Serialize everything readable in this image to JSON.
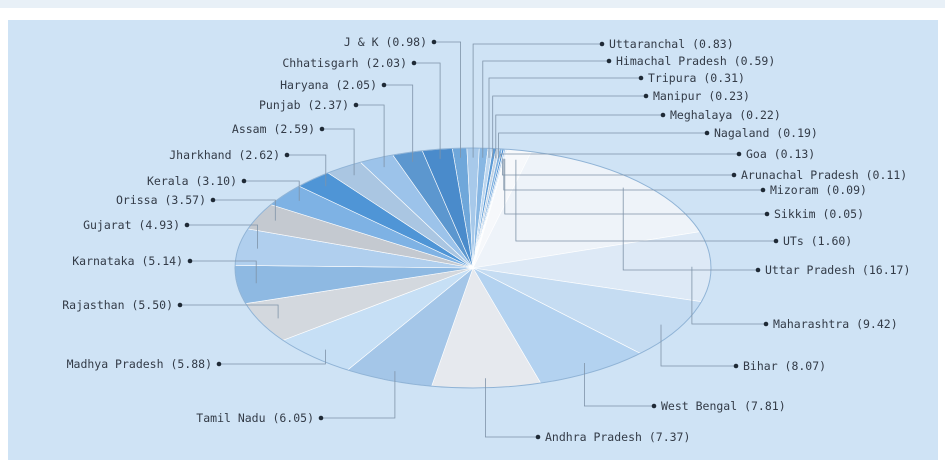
{
  "chart_data": {
    "type": "pie",
    "title": "",
    "legend": "none",
    "slices": [
      {
        "label": "J & K (0.98)",
        "name": "J & K",
        "value": 0.98,
        "color": "#6fa7da"
      },
      {
        "label": "Uttaranchal (0.83)",
        "name": "Uttaranchal",
        "value": 0.83,
        "color": "#a7c9ea"
      },
      {
        "label": "Himachal Pradesh (0.59)",
        "name": "Himachal Pradesh",
        "value": 0.59,
        "color": "#88b7e3"
      },
      {
        "label": "Tripura (0.31)",
        "name": "Tripura",
        "value": 0.31,
        "color": "#bcd6ef"
      },
      {
        "label": "Manipur (0.23)",
        "name": "Manipur",
        "value": 0.23,
        "color": "#5d9bd6"
      },
      {
        "label": "Meghalaya (0.22)",
        "name": "Meghalaya",
        "value": 0.22,
        "color": "#c2d3e4"
      },
      {
        "label": "Nagaland (0.19)",
        "name": "Nagaland",
        "value": 0.19,
        "color": "#7fb1e1"
      },
      {
        "label": "Goa (0.13)",
        "name": "Goa",
        "value": 0.13,
        "color": "#4b8fd2"
      },
      {
        "label": "Arunachal Pradesh (0.11)",
        "name": "Arunachal Pradesh",
        "value": 0.11,
        "color": "#9fc3e8"
      },
      {
        "label": "Mizoram (0.09)",
        "name": "Mizoram",
        "value": 0.09,
        "color": "#d6e6f5"
      },
      {
        "label": "Sikkim (0.05)",
        "name": "Sikkim",
        "value": 0.05,
        "color": "#3d86cf"
      },
      {
        "label": "UTs (1.60)",
        "name": "UTs",
        "value": 1.6,
        "color": "#f6f8fb"
      },
      {
        "label": "Uttar Pradesh (16.17)",
        "name": "Uttar Pradesh",
        "value": 16.17,
        "color": "#eef3f9"
      },
      {
        "label": "Maharashtra (9.42)",
        "name": "Maharashtra",
        "value": 9.42,
        "color": "#dde9f6"
      },
      {
        "label": "Bihar (8.07)",
        "name": "Bihar",
        "value": 8.07,
        "color": "#c5dcf2"
      },
      {
        "label": "West Bengal (7.81)",
        "name": "West Bengal",
        "value": 7.81,
        "color": "#b3d2f0"
      },
      {
        "label": "Andhra Pradesh (7.37)",
        "name": "Andhra Pradesh",
        "value": 7.37,
        "color": "#e6e9ee"
      },
      {
        "label": "Tamil Nadu (6.05)",
        "name": "Tamil Nadu",
        "value": 6.05,
        "color": "#a4c6e8"
      },
      {
        "label": "Madhya Pradesh (5.88)",
        "name": "Madhya Pradesh",
        "value": 5.88,
        "color": "#c6dff5"
      },
      {
        "label": "Rajasthan (5.50)",
        "name": "Rajasthan",
        "value": 5.5,
        "color": "#d3d8de"
      },
      {
        "label": "Karnataka (5.14)",
        "name": "Karnataka",
        "value": 5.14,
        "color": "#8eb9e2"
      },
      {
        "label": "Gujarat (4.93)",
        "name": "Gujarat",
        "value": 4.93,
        "color": "#b0cfee"
      },
      {
        "label": "Orissa (3.57)",
        "name": "Orissa",
        "value": 3.57,
        "color": "#c4c9d0"
      },
      {
        "label": "Kerala (3.10)",
        "name": "Kerala",
        "value": 3.1,
        "color": "#7eb2e4"
      },
      {
        "label": "Jharkhand (2.62)",
        "name": "Jharkhand",
        "value": 2.62,
        "color": "#4f95d6"
      },
      {
        "label": "Assam (2.59)",
        "name": "Assam",
        "value": 2.59,
        "color": "#aac6e2"
      },
      {
        "label": "Punjab (2.37)",
        "name": "Punjab",
        "value": 2.37,
        "color": "#9cc3ea"
      },
      {
        "label": "Haryana (2.05)",
        "name": "Haryana",
        "value": 2.05,
        "color": "#5c97cf"
      },
      {
        "label": "Chhatisgarh (2.03)",
        "name": "Chhatisgarh",
        "value": 2.03,
        "color": "#4a8bcb"
      }
    ]
  }
}
